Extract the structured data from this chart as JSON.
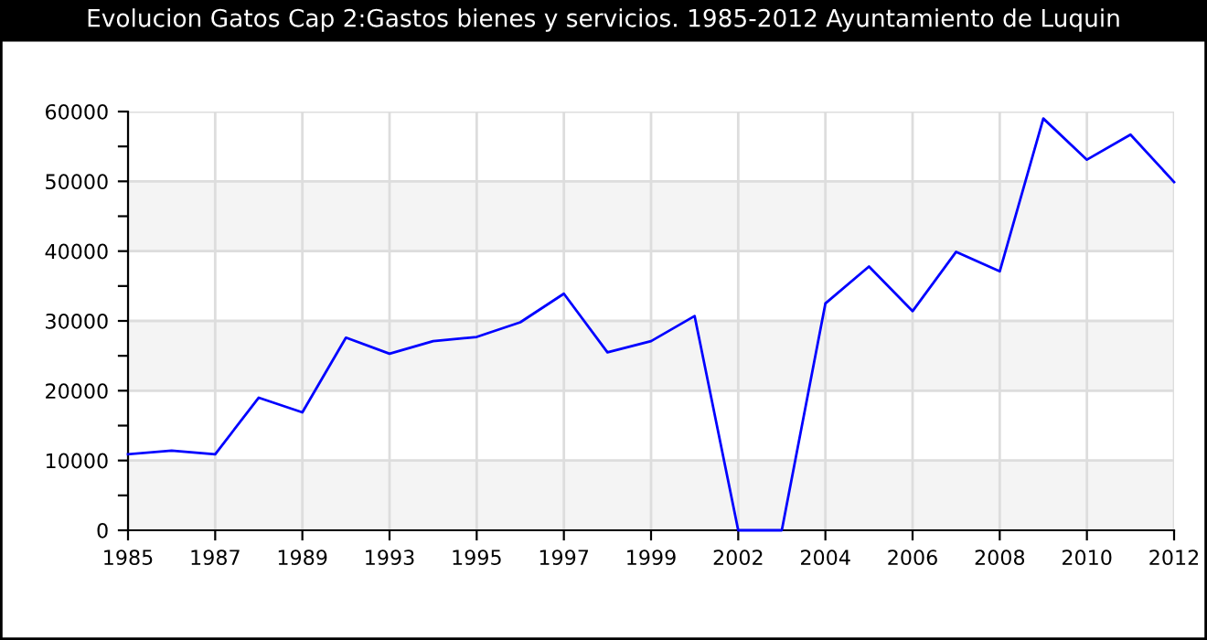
{
  "chart_data": {
    "type": "line",
    "title": "Evolucion Gatos Cap 2:Gastos bienes y servicios. 1985-2012 Ayuntamiento de Luquin",
    "categories": [
      "1985",
      null,
      "1987",
      null,
      "1989",
      null,
      "1993",
      null,
      "1995",
      null,
      "1997",
      null,
      "1999",
      null,
      "2002",
      null,
      "2004",
      null,
      "2006",
      null,
      "2008",
      null,
      "2010",
      null,
      "2012"
    ],
    "series": [
      {
        "color": "#0000ff",
        "values": [
          10900,
          11400,
          10900,
          19000,
          16900,
          27600,
          25300,
          27100,
          27700,
          29800,
          33900,
          25500,
          27100,
          30700,
          0,
          0,
          32500,
          37800,
          31400,
          39900,
          37100,
          59000,
          53100,
          56700,
          49900
        ]
      }
    ],
    "ylim": [
      0,
      60000
    ],
    "yticks": [
      0,
      {
        "value": 5000,
        "label": null
      },
      10000,
      {
        "value": 15000,
        "label": null
      },
      20000,
      {
        "value": 25000,
        "label": null
      },
      30000,
      {
        "value": 35000,
        "label": null
      },
      40000,
      {
        "value": 45000,
        "label": null
      },
      50000,
      {
        "value": 55000,
        "label": null
      },
      60000
    ],
    "grid": true,
    "marker": "none",
    "line_style": "solid"
  }
}
